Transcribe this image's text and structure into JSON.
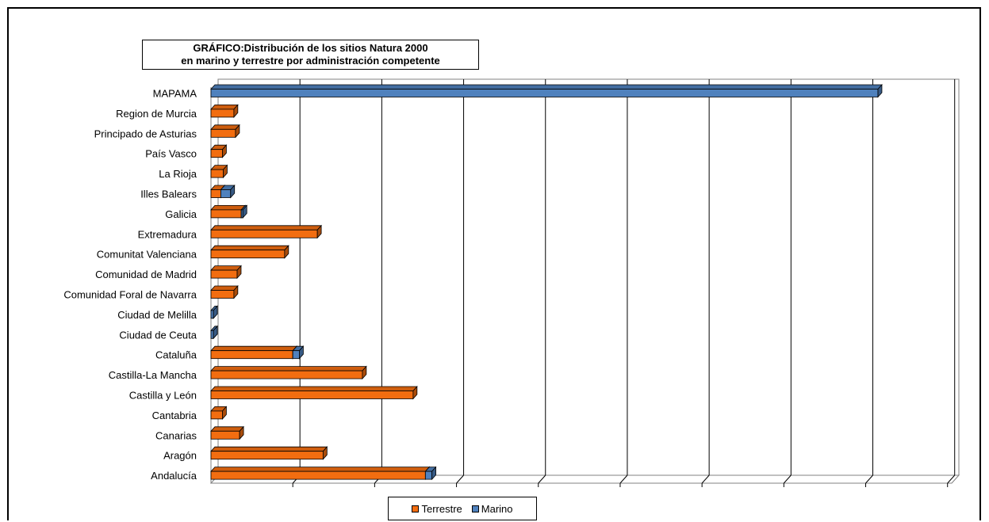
{
  "chart_data": {
    "type": "bar",
    "orientation": "horizontal",
    "stacked": true,
    "three_d": true,
    "title_lines": [
      "GRÁFICO:Distribución de los sitios Natura 2000",
      "en marino y terrestre por administración competente"
    ],
    "categories": [
      "MAPAMA",
      "Region de Murcia",
      "Principado de Asturias",
      "País Vasco",
      "La Rioja",
      "Illes Balears",
      "Galicia",
      "Extremadura",
      "Comunitat Valenciana",
      "Comunidad de Madrid",
      "Comunidad Foral de Navarra",
      "Ciudad de Melilla",
      "Ciudad de Ceuta",
      "Cataluña",
      "Castilla-La Mancha",
      "Castilla y León",
      "Cantabria",
      "Canarias",
      "Aragón",
      "Andalucía"
    ],
    "series": [
      {
        "name": "Terrestre",
        "color": "#f26d10",
        "values": [
          0,
          28,
          30,
          14,
          15,
          12,
          37,
          130,
          90,
          32,
          28,
          0,
          0,
          100,
          185,
          247,
          14,
          35,
          137,
          262
        ]
      },
      {
        "name": "Marino",
        "color": "#4f81bd",
        "values": [
          815,
          0,
          0,
          0,
          0,
          12,
          2,
          0,
          0,
          0,
          0,
          3,
          3,
          8,
          0,
          0,
          0,
          0,
          0,
          8
        ]
      }
    ],
    "xlim": [
      0,
      900
    ],
    "gridlines": "vertical",
    "legend_position": "bottom"
  }
}
